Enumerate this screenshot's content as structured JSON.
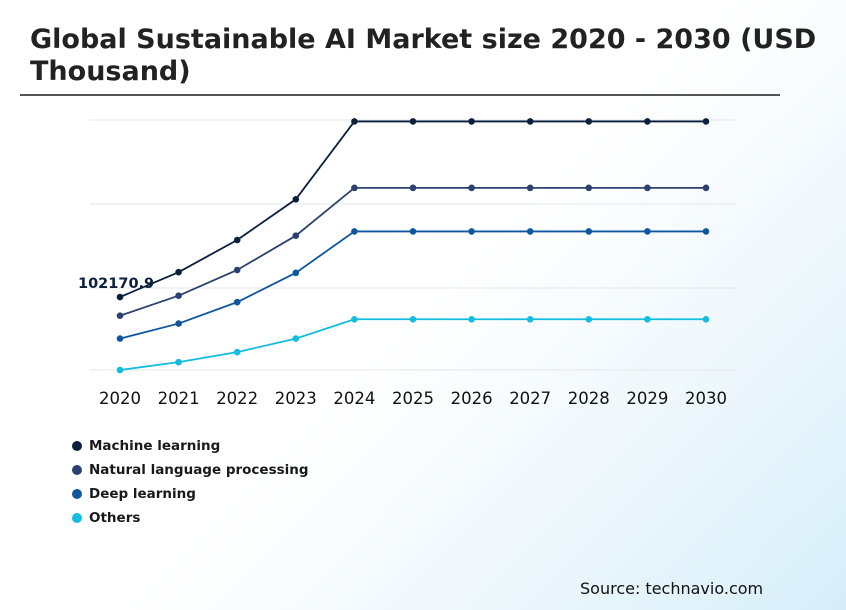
{
  "title_line1": "Global Sustainable AI Market size 2020 - 2030 (USD",
  "title_line2": "Thousand)",
  "source": "Source: technavio.com",
  "chart_data": {
    "type": "line",
    "title": "Global Sustainable AI Market size 2020 - 2030 (USD Thousand)",
    "xlabel": "",
    "ylabel": "",
    "categories": [
      "2020",
      "2021",
      "2022",
      "2023",
      "2024",
      "2025",
      "2026",
      "2027",
      "2028",
      "2029",
      "2030"
    ],
    "ylim": [
      0,
      350000
    ],
    "grid": "horizontal",
    "legend_position": "bottom-left",
    "annotations": [
      {
        "series": "Machine learning",
        "category": "2020",
        "text": "102170.9"
      }
    ],
    "series": [
      {
        "name": "Machine learning",
        "color": "#0b1f3e",
        "values": [
          102170.9,
          137000,
          182000,
          239000,
          348000,
          348000,
          348000,
          348000,
          348000,
          348000,
          348000
        ]
      },
      {
        "name": "Natural language processing",
        "color": "#2b4170",
        "values": [
          76000,
          104000,
          140000,
          188000,
          255000,
          255000,
          255000,
          255000,
          255000,
          255000,
          255000
        ]
      },
      {
        "name": "Deep learning",
        "color": "#0f56a0",
        "values": [
          44000,
          65000,
          95000,
          136000,
          194000,
          194000,
          194000,
          194000,
          194000,
          194000,
          194000
        ]
      },
      {
        "name": "Others",
        "color": "#12bde0",
        "values": [
          0,
          11000,
          25000,
          44000,
          71000,
          71000,
          71000,
          71000,
          71000,
          71000,
          71000
        ]
      }
    ]
  }
}
